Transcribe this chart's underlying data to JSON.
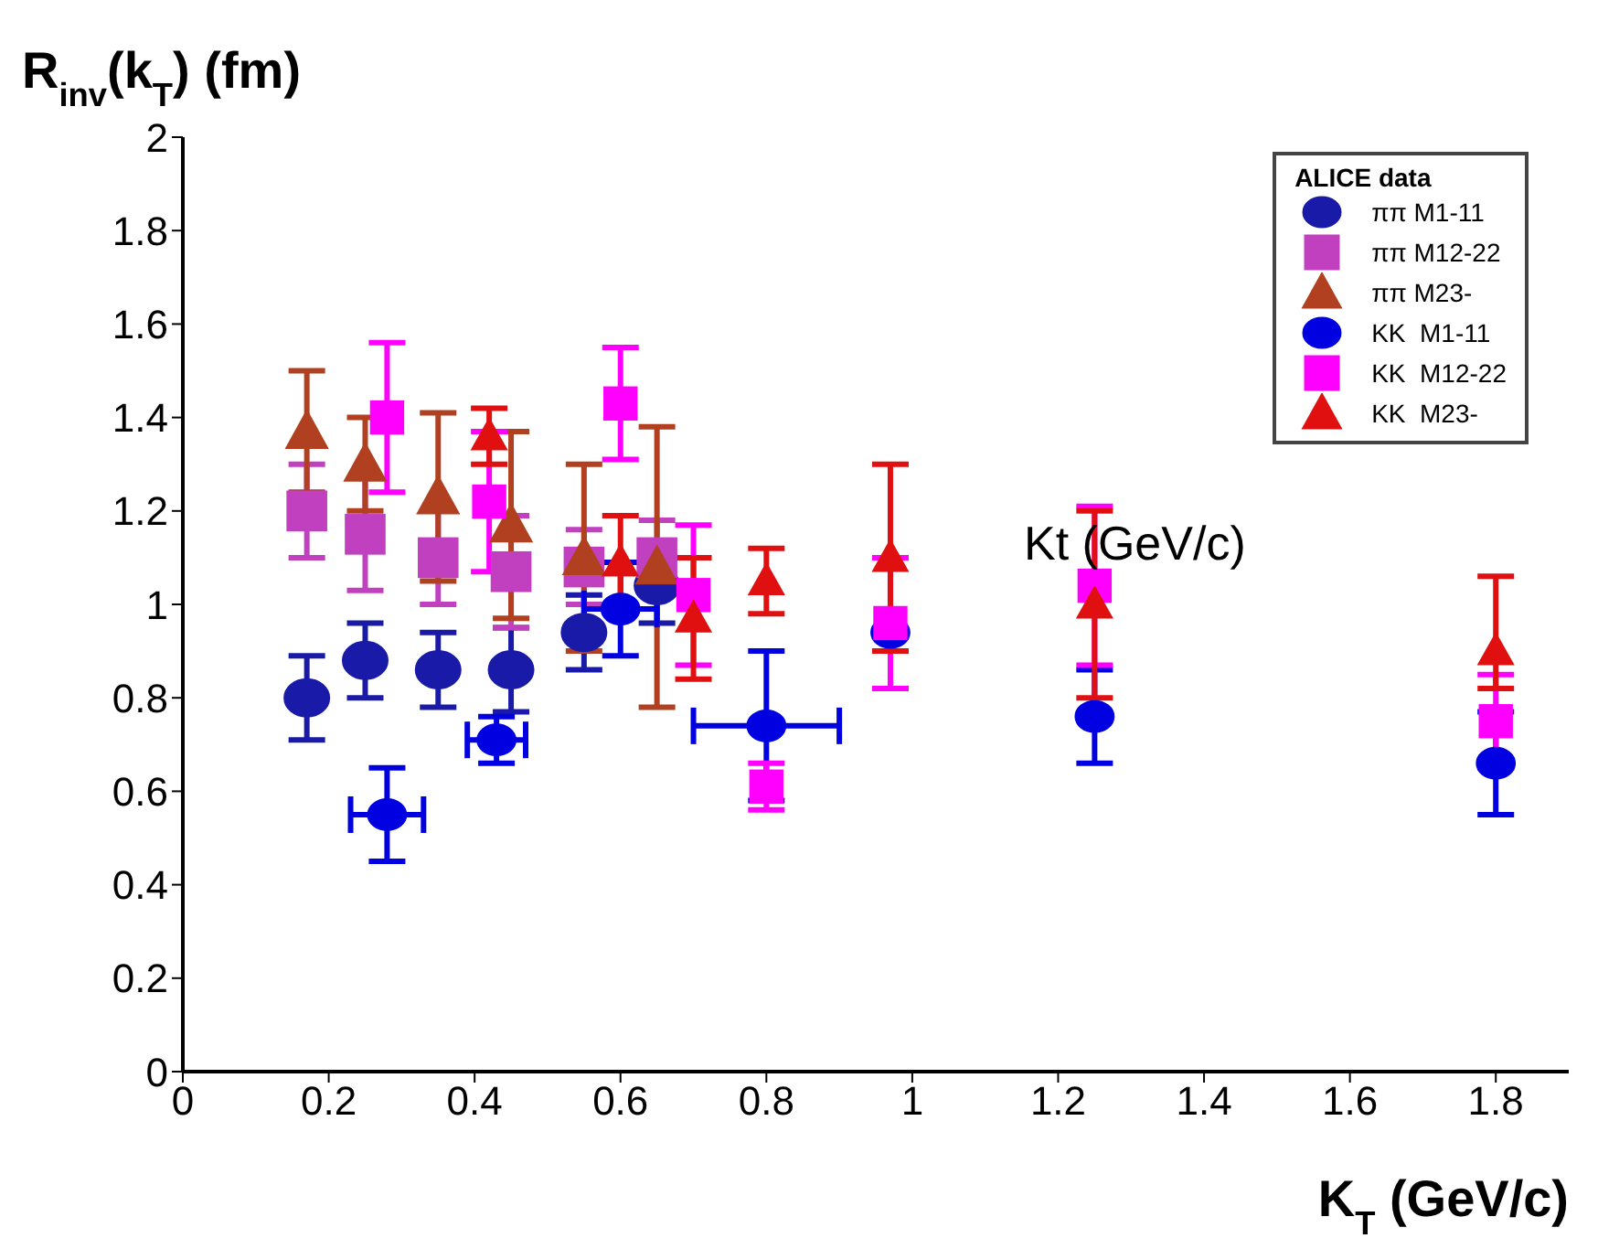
{
  "chart_data": {
    "type": "scatter",
    "ylabel": "R$_{inv}$(k$_{T}$) (fm)",
    "xlabel": "K$_{T}$ (GeV/c)",
    "legend_title": "ALICE data",
    "legend": "top right",
    "grid": false,
    "annotations": [
      "Kt (GeV/c)"
    ],
    "xlim": [
      0,
      1.9
    ],
    "xticks": [
      0,
      0.2,
      0.4,
      0.6,
      0.8,
      1,
      1.2,
      1.4,
      1.6,
      1.8
    ],
    "ylim": [
      0,
      2
    ],
    "yticks": [
      0,
      0.2,
      0.4,
      0.6,
      0.8,
      1,
      1.2,
      1.4,
      1.6,
      1.8,
      2
    ],
    "series": [
      {
        "name": "ππ M1-11",
        "color": "#1a1aa8",
        "marker": "circle",
        "x": [
          0.17,
          0.25,
          0.35,
          0.45,
          0.55,
          0.65
        ],
        "values": [
          0.8,
          0.88,
          0.86,
          0.86,
          0.94,
          1.04
        ],
        "errors": [
          0.09,
          0.08,
          0.08,
          0.09,
          0.08,
          0.08
        ]
      },
      {
        "name": "ππ M12-22",
        "color": "#c040c0",
        "marker": "square",
        "x": [
          0.17,
          0.25,
          0.35,
          0.45,
          0.55,
          0.65
        ],
        "values": [
          1.2,
          1.15,
          1.1,
          1.07,
          1.08,
          1.1
        ],
        "errors": [
          0.1,
          0.12,
          0.1,
          0.12,
          0.08,
          0.08
        ]
      },
      {
        "name": "ππ M23-",
        "color": "#b04020",
        "marker": "triangle",
        "x": [
          0.17,
          0.25,
          0.35,
          0.45,
          0.55,
          0.65
        ],
        "values": [
          1.37,
          1.3,
          1.23,
          1.17,
          1.1,
          1.08
        ],
        "errors": [
          0.13,
          0.1,
          0.18,
          0.2,
          0.2,
          0.3
        ]
      },
      {
        "name": "KK  M1-11",
        "color": "#0000e0",
        "marker": "circle",
        "x": [
          0.28,
          0.43,
          0.6,
          0.8,
          0.97,
          1.25,
          1.8
        ],
        "values": [
          0.55,
          0.71,
          0.99,
          0.74,
          0.94,
          0.76,
          0.66
        ],
        "errors": [
          0.1,
          0.05,
          0.1,
          0.16,
          null,
          0.1,
          0.11
        ],
        "xerrors": [
          0.05,
          0.04,
          0.05,
          0.1,
          null,
          null,
          null
        ]
      },
      {
        "name": "KK  M12-22",
        "color": "#ff00ff",
        "marker": "square",
        "x": [
          0.28,
          0.42,
          0.6,
          0.7,
          0.8,
          0.97,
          1.25,
          1.8
        ],
        "values": [
          1.4,
          1.22,
          1.43,
          1.02,
          0.61,
          0.96,
          1.04,
          0.75
        ],
        "errors": [
          0.16,
          0.15,
          0.12,
          0.15,
          0.05,
          0.14,
          0.17,
          0.1
        ]
      },
      {
        "name": "KK  M23-",
        "color": "#e01010",
        "marker": "triangle",
        "x": [
          0.42,
          0.6,
          0.7,
          0.8,
          0.97,
          1.25,
          1.8
        ],
        "values": [
          1.36,
          1.09,
          0.97,
          1.05,
          1.1,
          1.0,
          0.9
        ],
        "errors": [
          0.06,
          0.1,
          0.13,
          0.07,
          0.2,
          0.2,
          [
            0.82,
            1.06
          ]
        ]
      }
    ]
  }
}
